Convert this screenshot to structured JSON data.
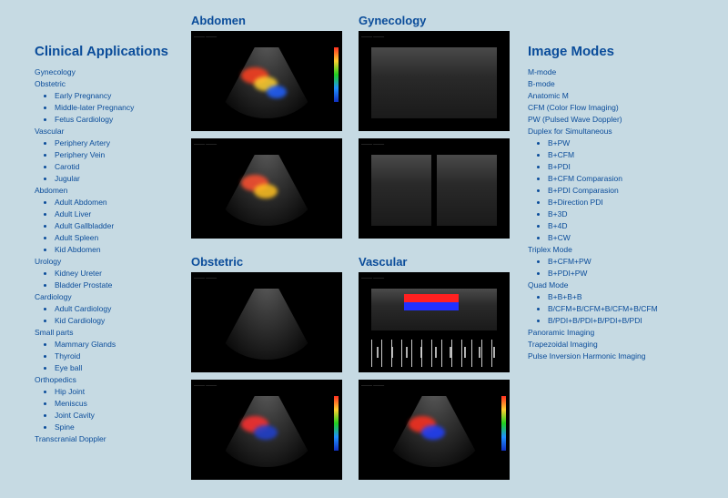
{
  "left": {
    "title": "Clinical Applications",
    "categories": [
      {
        "name": "Gynecology",
        "items": []
      },
      {
        "name": "Obstetric",
        "items": [
          "Early Pregnancy",
          "Middle-later Pregnancy",
          "Fetus Cardiology"
        ]
      },
      {
        "name": "Vascular",
        "items": [
          "Periphery Artery",
          "Periphery Vein",
          "Carotid",
          "Jugular"
        ]
      },
      {
        "name": "Abdomen",
        "items": [
          "Adult Abdomen",
          "Adult Liver",
          "Adult Gallbladder",
          "Adult Spleen",
          "Kid Abdomen"
        ]
      },
      {
        "name": "Urology",
        "items": [
          "Kidney Ureter",
          "Bladder Prostate"
        ]
      },
      {
        "name": "Cardiology",
        "items": [
          "Adult Cardiology",
          "Kid Cardiology"
        ]
      },
      {
        "name": "Small parts",
        "items": [
          "Mammary Glands",
          "Thyroid",
          "Eye ball"
        ]
      },
      {
        "name": "Orthopedics",
        "items": [
          "Hip Joint",
          "Meniscus",
          "Joint Cavity",
          "Spine"
        ]
      },
      {
        "name": "Transcranial Doppler",
        "items": []
      }
    ]
  },
  "mid": {
    "columns": [
      {
        "titles": [
          "Abdomen",
          "Obstetric"
        ],
        "images": [
          {
            "type": "fan",
            "color_flow": true,
            "flow_colors": [
              "#ff4020",
              "#ffd030",
              "#2060ff"
            ],
            "colorbar": true
          },
          {
            "type": "fan",
            "color_flow": true,
            "flow_colors": [
              "#ff5030",
              "#ffc020"
            ],
            "colorbar": false
          },
          {
            "type": "fan",
            "color_flow": false,
            "colorbar": false
          },
          {
            "type": "fan",
            "color_flow": true,
            "flow_colors": [
              "#ff3030",
              "#2040d0"
            ],
            "colorbar": true
          }
        ]
      },
      {
        "titles": [
          "Gynecology",
          "Vascular"
        ],
        "images": [
          {
            "type": "rect",
            "color_flow": false,
            "colorbar": false
          },
          {
            "type": "rect_dual",
            "color_flow": false,
            "colorbar": false
          },
          {
            "type": "spectrum",
            "color_flow": true,
            "flow_colors": [
              "#ff2020",
              "#2030ff"
            ],
            "colorbar": false
          },
          {
            "type": "fan",
            "color_flow": true,
            "flow_colors": [
              "#ff3020",
              "#2040ff"
            ],
            "colorbar": true
          }
        ]
      }
    ]
  },
  "right": {
    "title": "Image Modes",
    "categories": [
      {
        "name": "M-mode",
        "items": []
      },
      {
        "name": "B-mode",
        "items": []
      },
      {
        "name": "Anatomic M",
        "items": []
      },
      {
        "name": "CFM (Color Flow Imaging)",
        "items": []
      },
      {
        "name": "PW (Pulsed Wave Doppler)",
        "items": []
      },
      {
        "name": "Duplex for Simultaneous",
        "items": [
          "B+PW",
          "B+CFM",
          "B+PDI",
          "B+CFM Comparasion",
          "B+PDI Comparasion",
          "B+Direction PDI",
          "B+3D",
          "B+4D",
          "B+CW"
        ]
      },
      {
        "name": "Triplex Mode",
        "items": [
          "B+CFM+PW",
          "B+PDI+PW"
        ]
      },
      {
        "name": "Quad Mode",
        "items": [
          "B+B+B+B",
          "B/CFM+B/CFM+B/CFM+B/CFM",
          "B/PDI+B/PDI+B/PDI+B/PDI"
        ]
      },
      {
        "name": "Panoramic Imaging",
        "items": []
      },
      {
        "name": "Trapezoidal Imaging",
        "items": []
      },
      {
        "name": "Pulse Inversion Harmonic Imaging",
        "items": []
      }
    ]
  },
  "style": {
    "page_bg": "#c6dae3",
    "heading_color": "#0a4c9a",
    "text_color": "#0a4c9a",
    "heading_fontsize_pt": 15,
    "body_fontsize_pt": 8.5,
    "image_bg": "#000000"
  }
}
